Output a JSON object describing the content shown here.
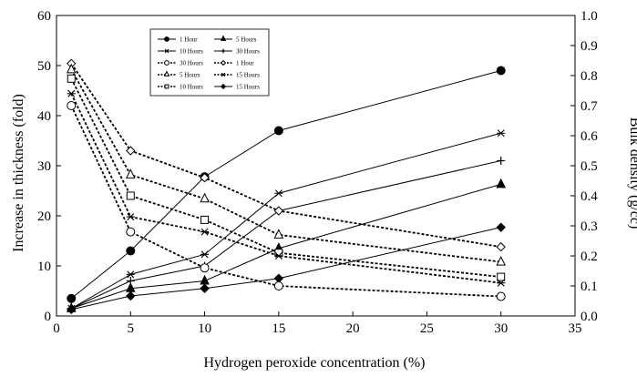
{
  "chart_data": {
    "type": "line",
    "xlabel": "Hydrogen peroxide concentration (%)",
    "ylabel": "Increase in thickness (fold)",
    "y2label": "Bulk density (g/cc)",
    "xlim": [
      0,
      35
    ],
    "ylim": [
      0,
      60
    ],
    "y2lim": [
      0,
      1.0
    ],
    "xticks": [
      "0",
      "5",
      "10",
      "15",
      "20",
      "25",
      "30",
      "35"
    ],
    "yticks": [
      "0",
      "10",
      "20",
      "30",
      "40",
      "50",
      "60"
    ],
    "y2ticks": [
      "0.0",
      "0.1",
      "0.2",
      "0.3",
      "0.4",
      "0.5",
      "0.6",
      "0.7",
      "0.8",
      "0.9",
      "1.0"
    ],
    "grid": false,
    "legend_position": "top-left",
    "x": [
      1,
      5,
      10,
      15,
      30
    ],
    "thickness_series": [
      {
        "name": "1 Hour",
        "marker": "filled-circle",
        "values": [
          3.5,
          13,
          27.8,
          37,
          49
        ]
      },
      {
        "name": "10 Hours",
        "marker": "star",
        "values": [
          1.5,
          8.3,
          12.3,
          24.5,
          36.5
        ]
      },
      {
        "name": "30 Hours",
        "marker": "plus",
        "values": [
          1.5,
          7,
          10,
          21,
          31
        ]
      },
      {
        "name": "5 Hours",
        "marker": "filled-triangle",
        "values": [
          1.5,
          5.5,
          7,
          13.5,
          26.3
        ]
      },
      {
        "name": "15 Hours",
        "marker": "filled-diamond",
        "values": [
          1.3,
          4,
          5.5,
          7.5,
          17.7
        ]
      }
    ],
    "density_series": [
      {
        "name": "1 Hour",
        "marker": "open-diamond",
        "values": [
          0.84,
          0.55,
          0.46,
          0.35,
          0.23
        ]
      },
      {
        "name": "5 Hours",
        "marker": "open-triangle",
        "values": [
          0.82,
          0.47,
          0.39,
          0.27,
          0.18
        ]
      },
      {
        "name": "10 Hours",
        "marker": "open-square",
        "values": [
          0.79,
          0.4,
          0.32,
          0.21,
          0.13
        ]
      },
      {
        "name": "15 Hours",
        "marker": "star",
        "values": [
          0.74,
          0.33,
          0.28,
          0.2,
          0.11
        ]
      },
      {
        "name": "30 Hours",
        "marker": "open-circle",
        "values": [
          0.7,
          0.28,
          0.16,
          0.1,
          0.065
        ]
      }
    ],
    "legend": [
      {
        "label": "1 Hour",
        "style": "solid",
        "marker": "filled-circle"
      },
      {
        "label": "5 Hours",
        "style": "solid",
        "marker": "filled-triangle"
      },
      {
        "label": "10 Hours",
        "style": "solid",
        "marker": "star"
      },
      {
        "label": "15 Hours",
        "style": "solid",
        "marker": "filled-diamond"
      },
      {
        "label": "30 Hours",
        "style": "solid",
        "marker": "plus"
      },
      {
        "label": "1 Hour",
        "style": "dashed",
        "marker": "open-diamond"
      },
      {
        "label": "5 Hours",
        "style": "dashed",
        "marker": "open-triangle"
      },
      {
        "label": "10 Hours",
        "style": "dashed",
        "marker": "open-square"
      },
      {
        "label": "15 Hours",
        "style": "dashed",
        "marker": "star"
      },
      {
        "label": "30 Hours",
        "style": "dashed",
        "marker": "open-circle"
      }
    ],
    "colors": {
      "axis": "#000000",
      "line": "#000000",
      "background": "#ffffff"
    }
  }
}
